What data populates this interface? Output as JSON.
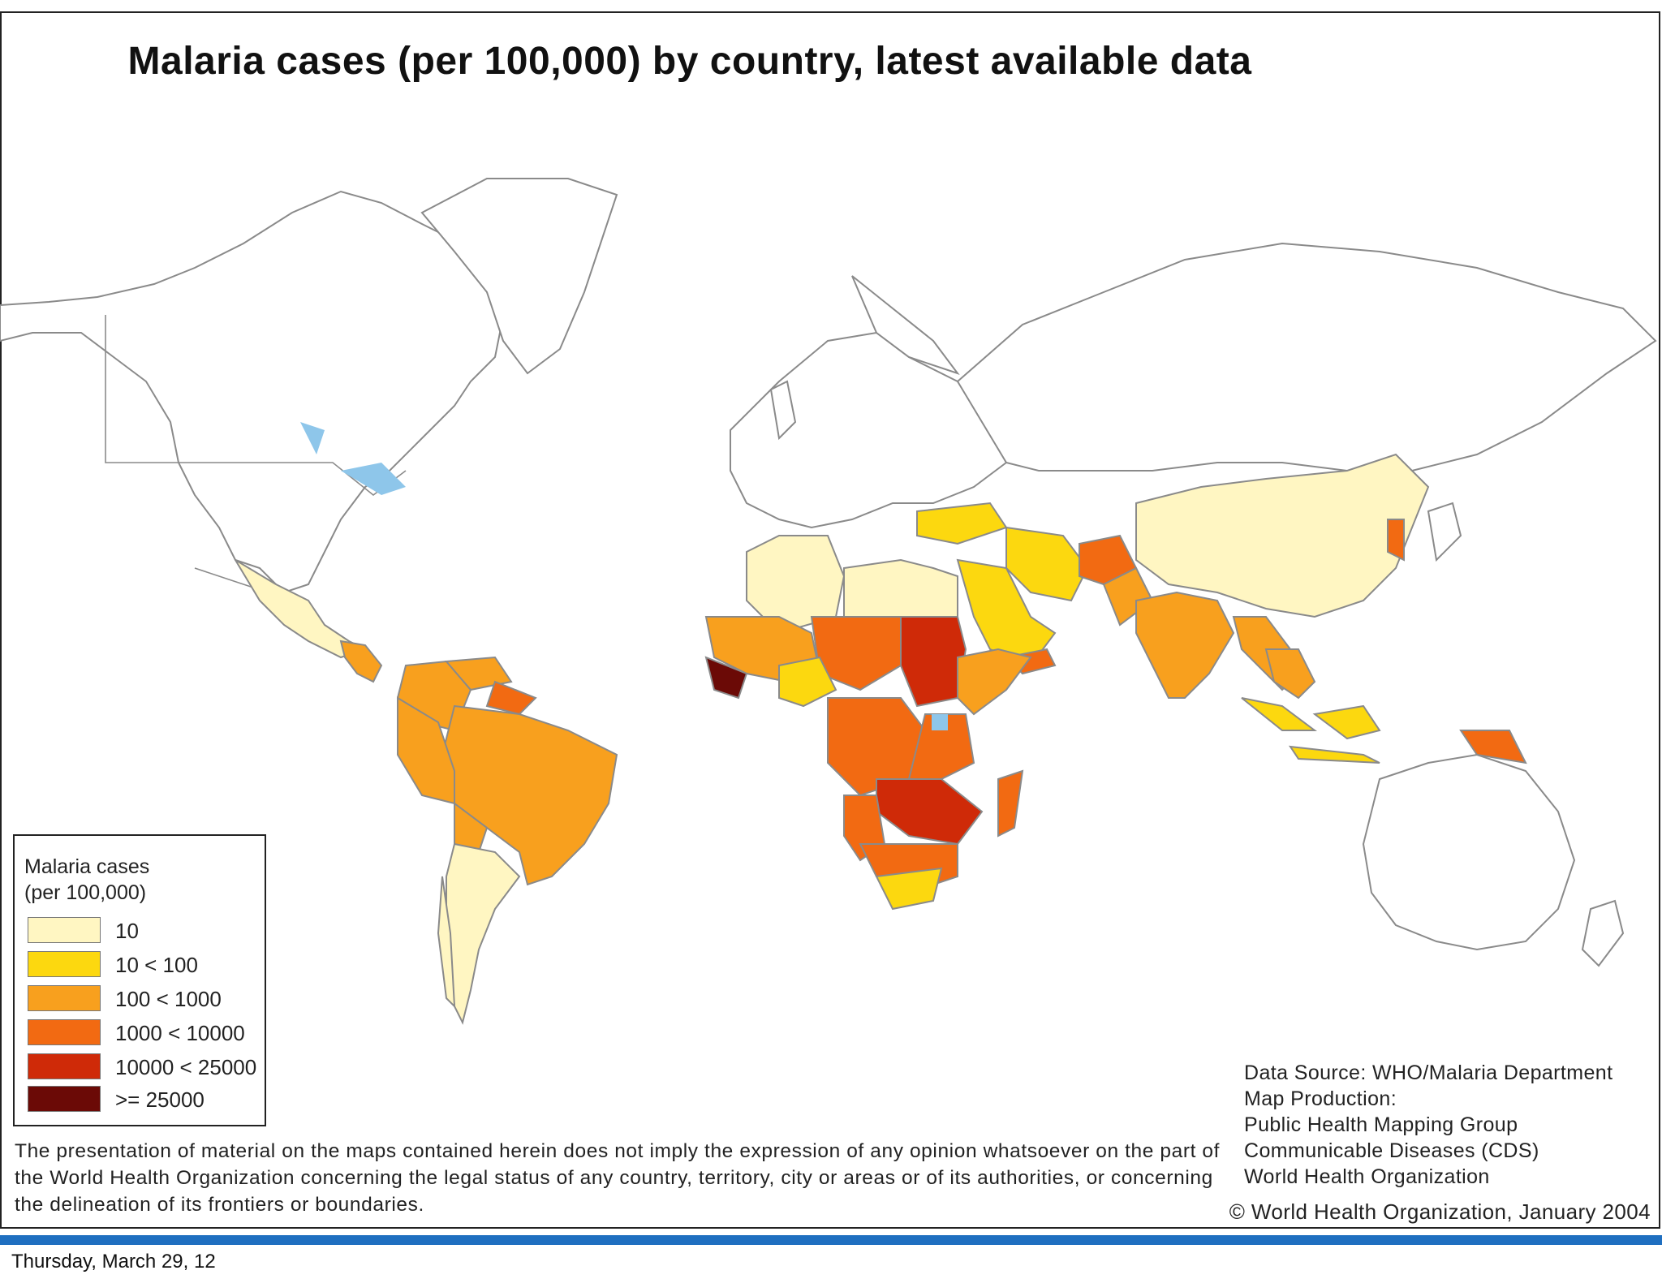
{
  "title": "Malaria cases (per 100,000) by country, latest available data",
  "legend": {
    "title": "Malaria cases\n(per 100,000)",
    "items": [
      {
        "label": "10",
        "color": "#fff6c2"
      },
      {
        "label": "10 < 100",
        "color": "#fcd80f"
      },
      {
        "label": "100 < 1000",
        "color": "#f8a01e"
      },
      {
        "label": "1000 < 10000",
        "color": "#f26a12"
      },
      {
        "label": "10000 < 25000",
        "color": "#cf2a08"
      },
      {
        "label": ">= 25000",
        "color": "#6b0a06"
      }
    ]
  },
  "disclaimer": "The presentation of material on the maps contained herein does not imply the expression of any opinion whatsoever on the part of the World Health Organization concerning the legal status of any country, territory, city or areas or of its authorities, or concerning the delineation of its frontiers or boundaries.",
  "credits": [
    "Data Source: WHO/Malaria Department",
    "Map Production:",
    "Public Health Mapping Group",
    "Communicable Diseases (CDS)",
    "World Health Organization"
  ],
  "copyright": "© World Health Organization, January 2004",
  "footer_date": "Thursday, March 29, 12"
}
